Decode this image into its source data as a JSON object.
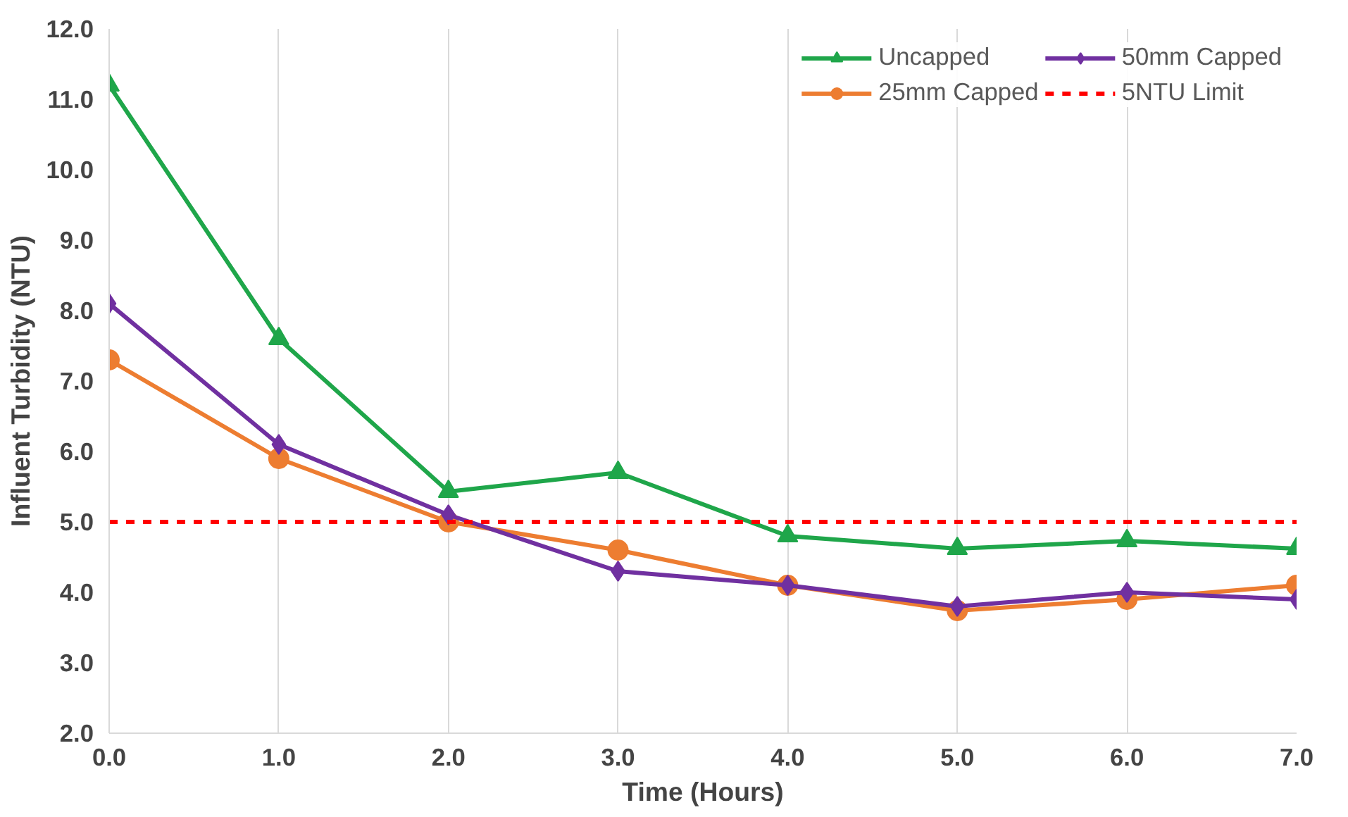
{
  "chart_data": {
    "type": "line",
    "xlabel": "Time (Hours)",
    "ylabel": "Influent Turbidity (NTU)",
    "x": [
      0,
      1,
      2,
      3,
      4,
      5,
      6,
      7
    ],
    "series": [
      {
        "name": "Uncapped",
        "color": "#1fa64a",
        "marker": "triangle",
        "values": [
          11.2,
          7.6,
          5.43,
          5.7,
          4.8,
          4.62,
          4.73,
          4.62
        ]
      },
      {
        "name": "25mm Capped",
        "color": "#ed7d31",
        "marker": "circle",
        "values": [
          7.3,
          5.9,
          5.0,
          4.6,
          4.1,
          3.74,
          3.9,
          4.1
        ]
      },
      {
        "name": "50mm Capped",
        "color": "#7030a0",
        "marker": "diamond",
        "values": [
          8.1,
          6.1,
          5.1,
          4.3,
          4.1,
          3.8,
          4.0,
          3.9
        ]
      }
    ],
    "ref_lines": [
      {
        "axis": "y",
        "value": 5,
        "label": "5NTU Limit",
        "color": "#ff0000",
        "line_style": "dashed"
      }
    ],
    "xlim": [
      0,
      7
    ],
    "ylim": [
      2,
      12
    ],
    "xticks": [
      {
        "value": 0,
        "label": "0.0"
      },
      {
        "value": 1,
        "label": "1.0"
      },
      {
        "value": 2,
        "label": "2.0"
      },
      {
        "value": 3,
        "label": "3.0"
      },
      {
        "value": 4,
        "label": "4.0"
      },
      {
        "value": 5,
        "label": "5.0"
      },
      {
        "value": 6,
        "label": "6.0"
      },
      {
        "value": 7,
        "label": "7.0"
      }
    ],
    "yticks": [
      {
        "value": 2,
        "label": "2.0"
      },
      {
        "value": 3,
        "label": "3.0"
      },
      {
        "value": 4,
        "label": "4.0"
      },
      {
        "value": 5,
        "label": "5.0"
      },
      {
        "value": 6,
        "label": "6.0"
      },
      {
        "value": 7,
        "label": "7.0"
      },
      {
        "value": 8,
        "label": "8.0"
      },
      {
        "value": 9,
        "label": "9.0"
      },
      {
        "value": 10,
        "label": "10.0"
      },
      {
        "value": 11,
        "label": "11.0"
      },
      {
        "value": 12,
        "label": "12.0"
      }
    ],
    "grid": "x",
    "legend": "top right",
    "line_style": "solid"
  }
}
